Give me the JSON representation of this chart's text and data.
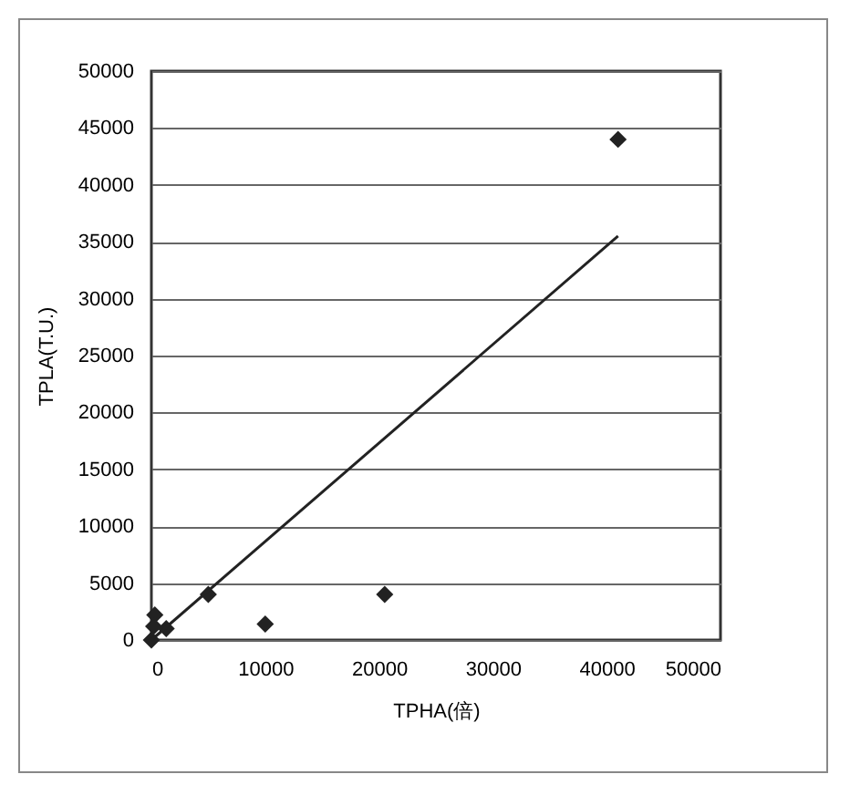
{
  "chart_data": {
    "type": "scatter",
    "xlabel": "TPHA(倍)",
    "ylabel": "TPLA(T.U.)",
    "xlim": [
      0,
      50000
    ],
    "xticks": [
      0,
      10000,
      20000,
      30000,
      40000,
      50000
    ],
    "ylim": [
      0,
      50000
    ],
    "yticks": [
      0,
      5000,
      10000,
      15000,
      20000,
      25000,
      30000,
      35000,
      40000,
      45000,
      50000
    ],
    "grid": "y",
    "marker": "diamond",
    "series": [
      {
        "color": "#222222",
        "x": [
          0,
          300,
          1300,
          200,
          5000,
          10000,
          20500,
          41000
        ],
        "values": [
          0,
          2200,
          1000,
          1200,
          4000,
          1400,
          4000,
          44000
        ]
      },
      {
        "type": "line",
        "color": "#222222",
        "marker": "none",
        "x": [
          0,
          41000
        ],
        "values": [
          0,
          35500
        ]
      }
    ]
  }
}
